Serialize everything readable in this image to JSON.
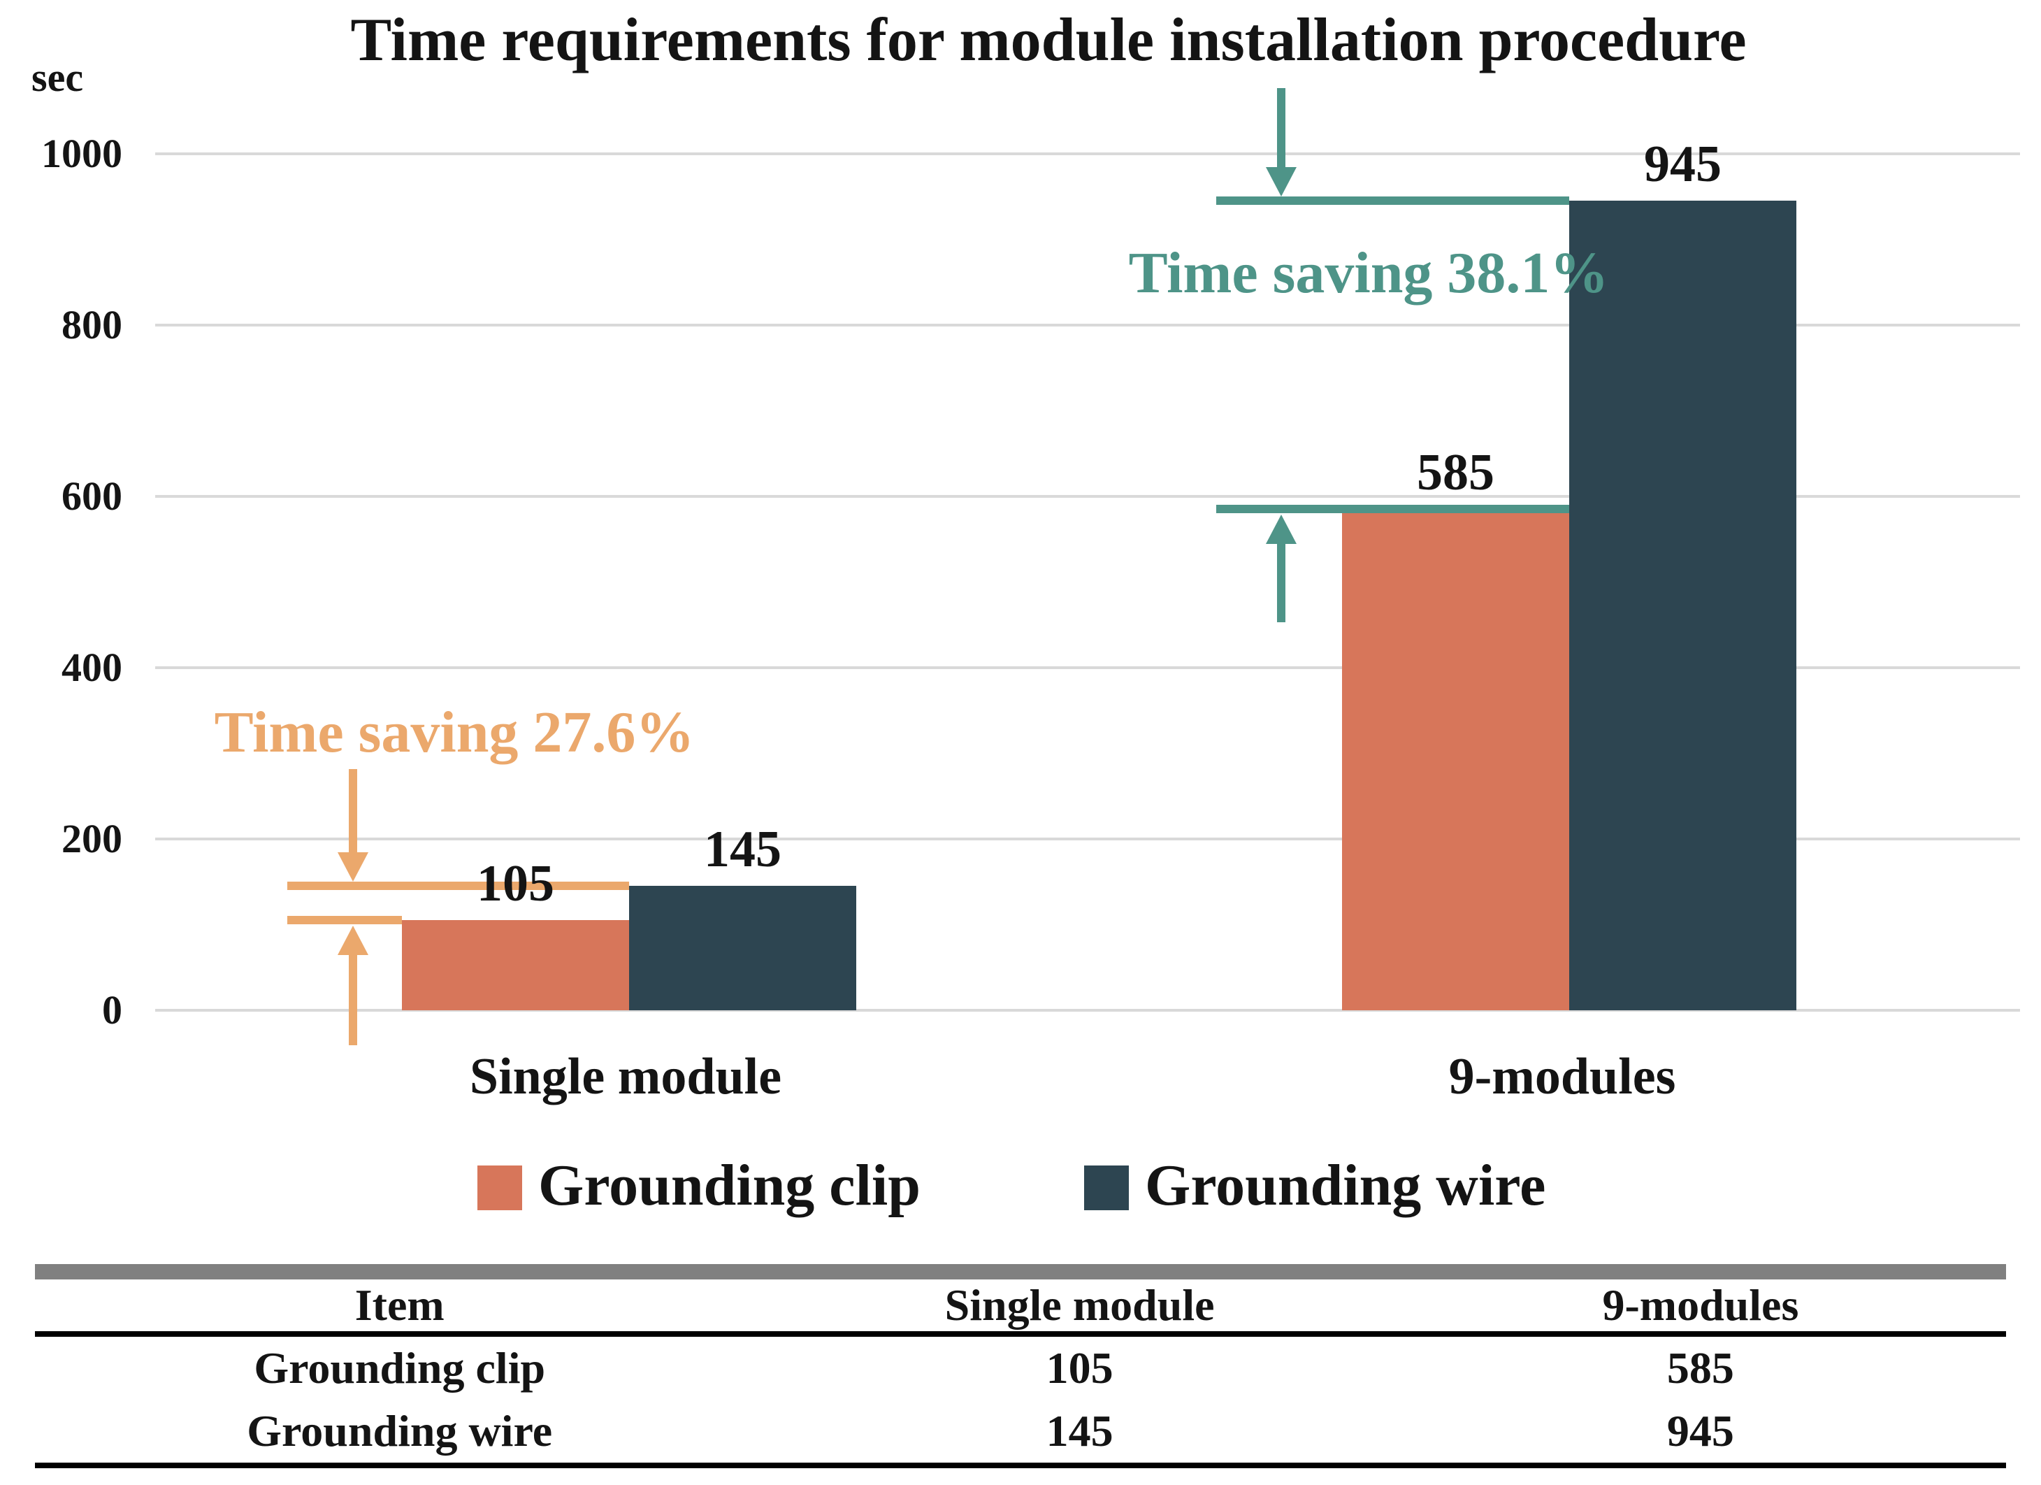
{
  "chart_data": {
    "type": "bar",
    "title": "Time requirements for module installation procedure",
    "unit_label": "sec",
    "categories": [
      "Single module",
      "9-modules"
    ],
    "series": [
      {
        "name": "Grounding clip",
        "color": "#D7765A",
        "values": [
          105,
          585
        ]
      },
      {
        "name": "Grounding wire",
        "color": "#2D4551",
        "values": [
          145,
          945
        ]
      }
    ],
    "ylim": [
      0,
      1000
    ],
    "ytick_interval": 200,
    "yticks": [
      "1000",
      "800",
      "600",
      "400",
      "200",
      "0"
    ],
    "grid": true,
    "grid_color": "#D9D9D9",
    "legend_position": "bottom",
    "bar_value_labels": [
      "105",
      "145",
      "585",
      "945"
    ],
    "annotations": [
      {
        "text": "Time saving 27.6%",
        "color": "#EBA86C",
        "group_index": 0
      },
      {
        "text": "Time saving 38.1%",
        "color": "#4E9488",
        "group_index": 1
      }
    ]
  },
  "table": {
    "headers": [
      "Item",
      "Single module",
      "9-modules"
    ],
    "rows": [
      [
        "Grounding clip",
        "105",
        "585"
      ],
      [
        "Grounding wire",
        "145",
        "945"
      ]
    ]
  }
}
